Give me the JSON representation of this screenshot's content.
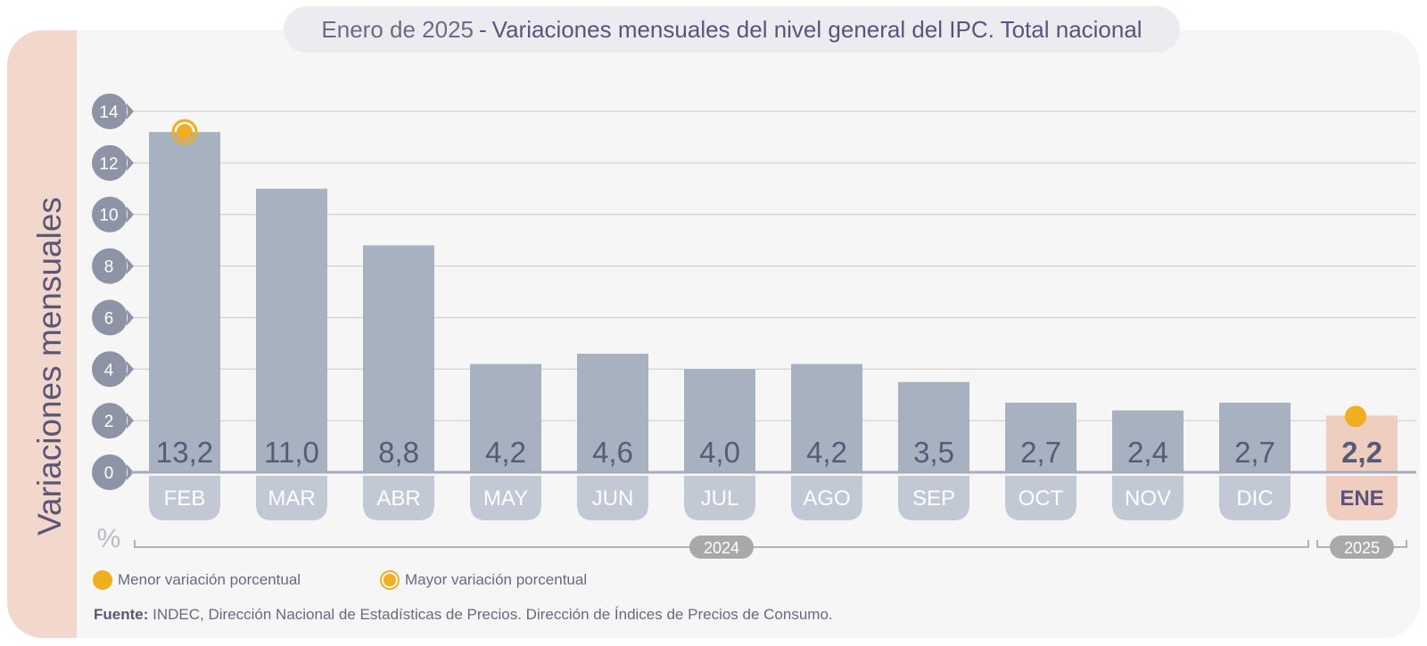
{
  "title": {
    "date": "Enero de 2025",
    "separator": "-",
    "main": "Variaciones mensuales del nivel general del IPC. Total nacional"
  },
  "y_axis_label": "Variaciones mensuales",
  "unit": "%",
  "legend": {
    "min_label": "Menor variación porcentual",
    "max_label": "Mayor variación porcentual"
  },
  "source": {
    "label": "Fuente:",
    "text": "INDEC, Dirección Nacional de Estadísticas de Precios. Dirección de Índices de Precios de Consumo."
  },
  "colors": {
    "bar": "#a7b1c0",
    "bar_highlight": "#efcdbf",
    "month_pill": "#c2c8d4",
    "month_pill_highlight": "#efcdbf",
    "value_text": "#565b77",
    "marker": "#f0ae22",
    "y_badge": "#8e94a6",
    "year_badge": "#a9a9a9"
  },
  "chart_data": {
    "type": "bar",
    "categories": [
      "FEB",
      "MAR",
      "ABR",
      "MAY",
      "JUN",
      "JUL",
      "AGO",
      "SEP",
      "OCT",
      "NOV",
      "DIC",
      "ENE"
    ],
    "values": [
      13.2,
      11.0,
      8.8,
      4.2,
      4.6,
      4.0,
      4.2,
      3.5,
      2.7,
      2.4,
      2.7,
      2.2
    ],
    "value_labels": [
      "13,2",
      "11,0",
      "8,8",
      "4,2",
      "4,6",
      "4,0",
      "4,2",
      "3,5",
      "2,7",
      "2,4",
      "2,7",
      "2,2"
    ],
    "ylim": [
      0,
      14
    ],
    "yticks": [
      0,
      2,
      4,
      6,
      8,
      10,
      12,
      14
    ],
    "grid": true,
    "highlight_index": 11,
    "max_marker_index": 0,
    "min_marker_index": 11,
    "year_groups": [
      {
        "label": "2024",
        "start_index": 0,
        "end_index": 10
      },
      {
        "label": "2025",
        "start_index": 11,
        "end_index": 11
      }
    ]
  }
}
